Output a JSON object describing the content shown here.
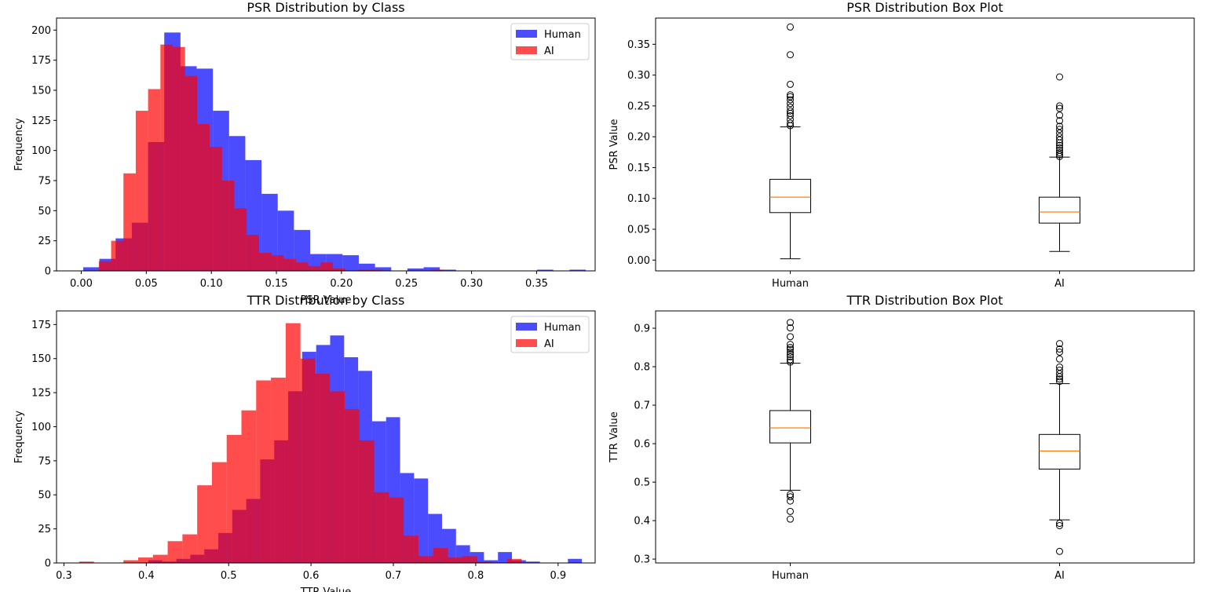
{
  "chart_data": [
    {
      "type": "histogram",
      "title": "PSR Distribution by Class",
      "xlabel": "PSR Value",
      "ylabel": "Frequency",
      "xlim": [
        -0.019,
        0.395
      ],
      "ylim": [
        0,
        210
      ],
      "xticks": [
        0.0,
        0.05,
        0.1,
        0.15,
        0.2,
        0.25,
        0.3,
        0.35
      ],
      "xtick_labels": [
        "0.00",
        "0.05",
        "0.10",
        "0.15",
        "0.20",
        "0.25",
        "0.30",
        "0.35"
      ],
      "yticks": [
        0,
        25,
        50,
        75,
        100,
        125,
        150,
        175,
        200
      ],
      "ytick_labels": [
        "0",
        "25",
        "50",
        "75",
        "100",
        "125",
        "150",
        "175",
        "200"
      ],
      "legend": {
        "placement": "upper right",
        "entries": [
          "Human",
          "AI"
        ]
      },
      "series": [
        {
          "name": "Human",
          "color": "#0000ff",
          "alpha": 0.7,
          "bin_start": 0.0015,
          "bin_width": 0.01246,
          "counts": [
            3,
            10,
            27,
            40,
            107,
            198,
            170,
            168,
            133,
            112,
            92,
            64,
            50,
            34,
            14,
            14,
            13,
            6,
            3,
            0,
            2,
            3,
            1,
            0,
            0,
            0,
            0,
            0,
            1,
            0,
            1
          ]
        },
        {
          "name": "AI",
          "color": "#ff0000",
          "alpha": 0.7,
          "bin_start": 0.0135,
          "bin_width": 0.00947,
          "counts": [
            8,
            25,
            81,
            133,
            151,
            188,
            186,
            162,
            122,
            103,
            75,
            52,
            30,
            15,
            13,
            10,
            7,
            4,
            7,
            2,
            0,
            1,
            1,
            0,
            0,
            0,
            0,
            1
          ]
        }
      ]
    },
    {
      "type": "box",
      "title": "PSR Distribution Box Plot",
      "ylabel": "PSR Value",
      "categories": [
        "Human",
        "AI"
      ],
      "ylim": [
        -0.0175,
        0.3925
      ],
      "yticks": [
        0.0,
        0.05,
        0.1,
        0.15,
        0.2,
        0.25,
        0.3,
        0.35
      ],
      "ytick_labels": [
        "0.00",
        "0.05",
        "0.10",
        "0.15",
        "0.20",
        "0.25",
        "0.30",
        "0.35"
      ],
      "boxes": [
        {
          "name": "Human",
          "whisker_low": 0.002,
          "q1": 0.077,
          "median": 0.102,
          "q3": 0.131,
          "whisker_high": 0.216,
          "outliers": [
            0.218,
            0.222,
            0.228,
            0.234,
            0.238,
            0.242,
            0.248,
            0.254,
            0.26,
            0.265,
            0.268,
            0.285,
            0.333,
            0.378
          ]
        },
        {
          "name": "AI",
          "whisker_low": 0.014,
          "q1": 0.06,
          "median": 0.078,
          "q3": 0.102,
          "whisker_high": 0.167,
          "outliers": [
            0.168,
            0.171,
            0.174,
            0.178,
            0.182,
            0.186,
            0.19,
            0.195,
            0.2,
            0.206,
            0.212,
            0.217,
            0.226,
            0.235,
            0.246,
            0.25,
            0.297
          ]
        }
      ]
    },
    {
      "type": "histogram",
      "title": "TTR Distribution by Class",
      "xlabel": "TTR Value",
      "ylabel": "Frequency",
      "xlim": [
        0.291,
        0.945
      ],
      "ylim": [
        0,
        185
      ],
      "xticks": [
        0.3,
        0.4,
        0.5,
        0.6,
        0.7,
        0.8,
        0.9
      ],
      "xtick_labels": [
        "0.3",
        "0.4",
        "0.5",
        "0.6",
        "0.7",
        "0.8",
        "0.9"
      ],
      "yticks": [
        0,
        25,
        50,
        75,
        100,
        125,
        150,
        175
      ],
      "ytick_labels": [
        "0",
        "25",
        "50",
        "75",
        "100",
        "125",
        "150",
        "175"
      ],
      "legend": {
        "placement": "upper right",
        "entries": [
          "Human",
          "AI"
        ]
      },
      "series": [
        {
          "name": "Human",
          "color": "#0000ff",
          "alpha": 0.7,
          "bin_start": 0.4025,
          "bin_width": 0.01698,
          "counts": [
            2,
            1,
            3,
            6,
            10,
            22,
            39,
            47,
            76,
            90,
            126,
            155,
            160,
            167,
            151,
            141,
            104,
            107,
            66,
            62,
            36,
            25,
            13,
            8,
            2,
            8,
            2,
            1,
            0,
            0,
            3
          ]
        },
        {
          "name": "AI",
          "color": "#ff0000",
          "alpha": 0.7,
          "bin_start": 0.3185,
          "bin_width": 0.01791,
          "counts": [
            1,
            0,
            0,
            2,
            4,
            6,
            16,
            21,
            57,
            74,
            94,
            112,
            134,
            136,
            176,
            150,
            139,
            126,
            113,
            90,
            52,
            48,
            20,
            5,
            11,
            4,
            5,
            1,
            0,
            3
          ]
        }
      ]
    },
    {
      "type": "box",
      "title": "TTR Distribution Box Plot",
      "ylabel": "TTR Value",
      "categories": [
        "Human",
        "AI"
      ],
      "ylim": [
        0.29,
        0.945
      ],
      "yticks": [
        0.3,
        0.4,
        0.5,
        0.6,
        0.7,
        0.8,
        0.9
      ],
      "ytick_labels": [
        "0.3",
        "0.4",
        "0.5",
        "0.6",
        "0.7",
        "0.8",
        "0.9"
      ],
      "boxes": [
        {
          "name": "Human",
          "whisker_low": 0.479,
          "q1": 0.602,
          "median": 0.641,
          "q3": 0.686,
          "whisker_high": 0.809,
          "outliers": [
            0.404,
            0.424,
            0.451,
            0.462,
            0.468,
            0.812,
            0.818,
            0.826,
            0.832,
            0.838,
            0.845,
            0.85,
            0.858,
            0.878,
            0.901,
            0.915
          ]
        },
        {
          "name": "AI",
          "whisker_low": 0.402,
          "q1": 0.534,
          "median": 0.581,
          "q3": 0.624,
          "whisker_high": 0.756,
          "outliers": [
            0.32,
            0.387,
            0.393,
            0.762,
            0.768,
            0.774,
            0.782,
            0.791,
            0.799,
            0.82,
            0.838,
            0.846,
            0.86
          ]
        }
      ]
    }
  ]
}
